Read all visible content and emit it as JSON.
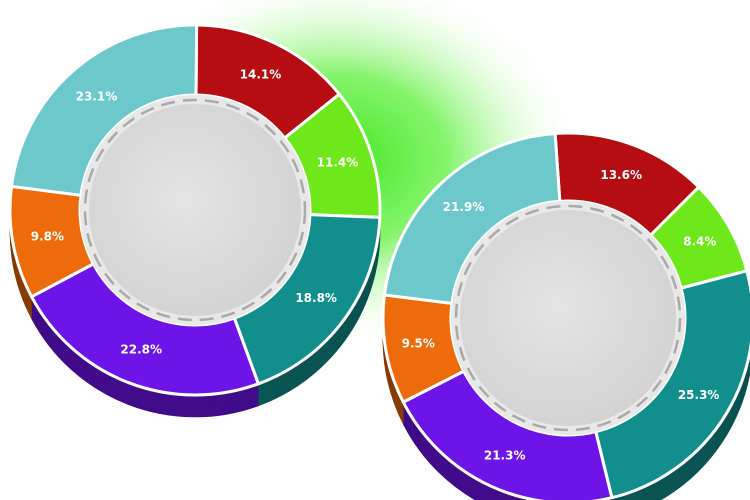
{
  "chart_data": [
    {
      "type": "pie",
      "variant": "donut-3d",
      "slices": [
        {
          "label": "14.1%",
          "value": 14.1,
          "color": "#b50d12"
        },
        {
          "label": "11.4%",
          "value": 11.4,
          "color": "#6ee81a"
        },
        {
          "label": "18.8%",
          "value": 18.8,
          "color": "#128f8d"
        },
        {
          "label": "22.8%",
          "value": 22.8,
          "color": "#6d14e8"
        },
        {
          "label": "9.8%",
          "value": 9.8,
          "color": "#ee6b0b"
        },
        {
          "label": "23.1%",
          "value": 23.1,
          "color": "#6cc8cb"
        }
      ]
    },
    {
      "type": "pie",
      "variant": "donut-3d",
      "slices": [
        {
          "label": "13.6%",
          "value": 13.6,
          "color": "#b50d12"
        },
        {
          "label": "8.4%",
          "value": 8.4,
          "color": "#6ee81a"
        },
        {
          "label": "25.3%",
          "value": 25.3,
          "color": "#128f8d"
        },
        {
          "label": "21.3%",
          "value": 21.3,
          "color": "#6d14e8"
        },
        {
          "label": "9.5%",
          "value": 9.5,
          "color": "#ee6b0b"
        },
        {
          "label": "21.9%",
          "value": 21.9,
          "color": "#6cc8cb"
        }
      ]
    }
  ],
  "colors": {
    "glow": "#3ee61c",
    "hub": "#dcdcdc",
    "hub_ring": "#e8e8e8",
    "dash": "#a9a9a9"
  }
}
